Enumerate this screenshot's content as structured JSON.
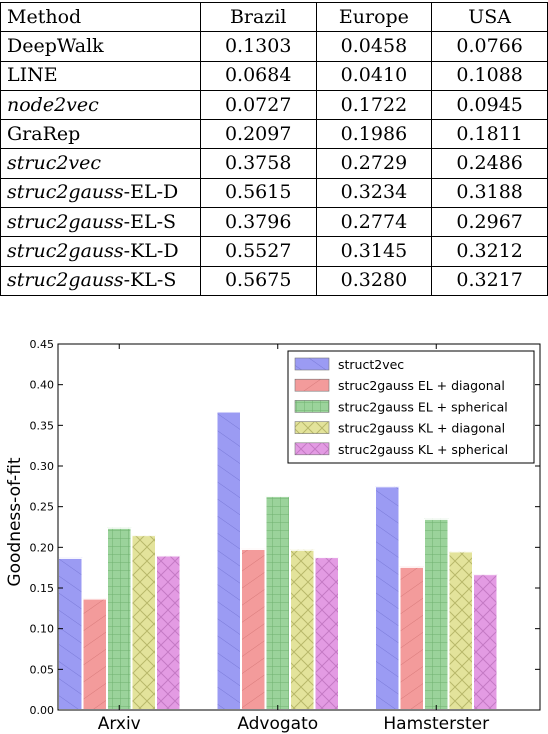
{
  "table": {
    "headers": [
      "Method",
      "Brazil",
      "Europe",
      "USA"
    ],
    "rows": [
      {
        "method": "DeepWalk",
        "italic": false,
        "suffix": "",
        "values": [
          "0.1303",
          "0.0458",
          "0.0766"
        ],
        "bold": false
      },
      {
        "method": "LINE",
        "italic": false,
        "suffix": "",
        "values": [
          "0.0684",
          "0.0410",
          "0.1088"
        ],
        "bold": false
      },
      {
        "method": "node2vec",
        "italic": true,
        "suffix": "",
        "values": [
          "0.0727",
          "0.1722",
          "0.0945"
        ],
        "bold": false
      },
      {
        "method": "GraRep",
        "italic": false,
        "suffix": "",
        "values": [
          "0.2097",
          "0.1986",
          "0.1811"
        ],
        "bold": false
      },
      {
        "method": "struc2vec",
        "italic": true,
        "suffix": "",
        "values": [
          "0.3758",
          "0.2729",
          "0.2486"
        ],
        "bold": false
      },
      {
        "method": "struc2gauss",
        "italic": true,
        "suffix": "-EL-D",
        "values": [
          "0.5615",
          "0.3234",
          "0.3188"
        ],
        "bold": false
      },
      {
        "method": "struc2gauss",
        "italic": true,
        "suffix": "-EL-S",
        "values": [
          "0.3796",
          "0.2774",
          "0.2967"
        ],
        "bold": false
      },
      {
        "method": "struc2gauss",
        "italic": true,
        "suffix": "-KL-D",
        "values": [
          "0.5527",
          "0.3145",
          "0.3212"
        ],
        "bold": false
      },
      {
        "method": "struc2gauss",
        "italic": true,
        "suffix": "-KL-S",
        "values": [
          "0.5675",
          "0.3280",
          "0.3217"
        ],
        "bold": true
      }
    ]
  },
  "chart_data": {
    "type": "bar",
    "title": "",
    "xlabel": "",
    "ylabel": "Goodness-of-fit",
    "ylim": [
      0,
      0.45
    ],
    "yticks": [
      "0.00",
      "0.05",
      "0.10",
      "0.15",
      "0.20",
      "0.25",
      "0.30",
      "0.35",
      "0.40",
      "0.45"
    ],
    "categories": [
      "Arxiv",
      "Advogato",
      "Hamsterster"
    ],
    "legend_position": "top-right",
    "grid": false,
    "series": [
      {
        "name": "struct2vec",
        "color": "#9b9bf3",
        "pattern": "diag",
        "values": [
          0.187,
          0.367,
          0.275
        ]
      },
      {
        "name": "struc2gauss EL + diagonal",
        "color": "#f39b9b",
        "pattern": "back-diag",
        "values": [
          0.137,
          0.198,
          0.176
        ]
      },
      {
        "name": "struc2gauss EL + spherical",
        "color": "#9bd39b",
        "pattern": "grid",
        "values": [
          0.224,
          0.263,
          0.235
        ]
      },
      {
        "name": "struc2gauss KL + diagonal",
        "color": "#e3e39b",
        "pattern": "cross",
        "values": [
          0.215,
          0.197,
          0.195
        ]
      },
      {
        "name": "struc2gauss KL + spherical",
        "color": "#e39be3",
        "pattern": "cross-light",
        "values": [
          0.19,
          0.188,
          0.167
        ]
      }
    ]
  }
}
